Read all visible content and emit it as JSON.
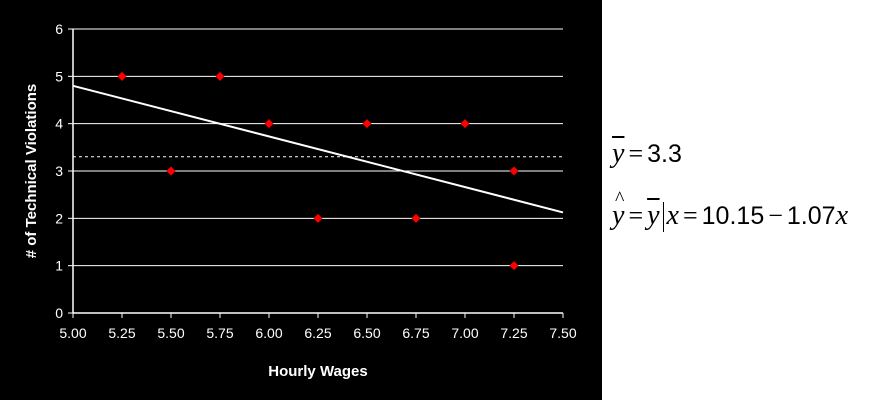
{
  "chart_data": {
    "type": "scatter",
    "title": "",
    "xlabel": "Hourly Wages",
    "ylabel": "# of Technical Violations",
    "xlim": [
      5.0,
      7.5
    ],
    "ylim": [
      0,
      6
    ],
    "x_ticks": [
      "5.00",
      "5.25",
      "5.50",
      "5.75",
      "6.00",
      "6.25",
      "6.50",
      "6.75",
      "7.00",
      "7.25",
      "7.50"
    ],
    "y_ticks": [
      "0",
      "1",
      "2",
      "3",
      "4",
      "5",
      "6"
    ],
    "grid": "horizontal",
    "series": [
      {
        "name": "Violations",
        "marker": "diamond",
        "color": "#ff0000",
        "points": [
          {
            "x": 5.25,
            "y": 5
          },
          {
            "x": 5.5,
            "y": 3
          },
          {
            "x": 5.75,
            "y": 5
          },
          {
            "x": 6.0,
            "y": 4
          },
          {
            "x": 6.25,
            "y": 2
          },
          {
            "x": 6.5,
            "y": 4
          },
          {
            "x": 6.75,
            "y": 2
          },
          {
            "x": 7.0,
            "y": 4
          },
          {
            "x": 7.25,
            "y": 3
          },
          {
            "x": 7.25,
            "y": 1
          }
        ]
      }
    ],
    "regression_line": {
      "intercept": 10.15,
      "slope": -1.07,
      "color": "#ffffff"
    },
    "mean_line": {
      "y": 3.3,
      "style": "dashed",
      "color": "#ffffff"
    }
  },
  "equations": {
    "mean_lhs": "y",
    "mean_value": "3.3",
    "regression_lhs": "y",
    "regression_mid": "y",
    "regression_x": "x",
    "regression_intercept": "10.15",
    "regression_slope": "1.07",
    "regression_var": "x"
  }
}
